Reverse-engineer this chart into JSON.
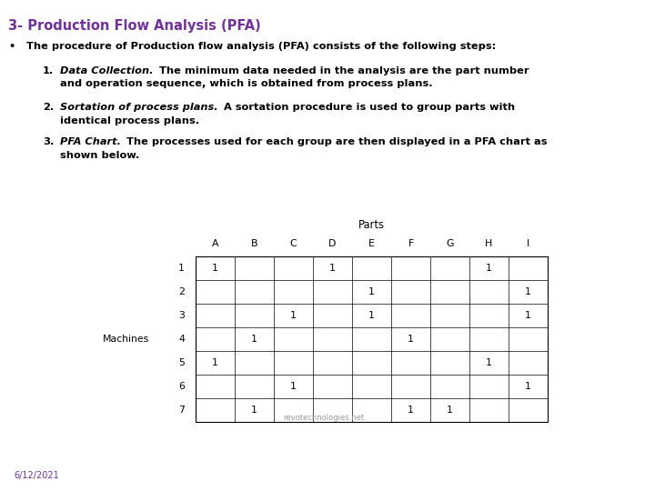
{
  "title": "3- Production Flow Analysis (PFA)",
  "title_color": "#7030A0",
  "bullet_text": "The procedure of Production flow analysis (PFA) consists of the following steps:",
  "steps": [
    {
      "num": "1.",
      "italic": "Data Collection.",
      "plain": " The minimum data needed in the analysis are the part number",
      "cont": "and operation sequence, which is obtained from process plans."
    },
    {
      "num": "2.",
      "italic": "Sortation of process plans.",
      "plain": " A sortation procedure is used to group parts with",
      "cont": "identical process plans."
    },
    {
      "num": "3.",
      "italic": "PFA Chart.",
      "plain": " The processes used for each group are then displayed in a PFA chart as",
      "cont": "shown below."
    }
  ],
  "table": {
    "parts_label": "Parts",
    "machines_label": "Machines",
    "parts": [
      "A",
      "B",
      "C",
      "D",
      "E",
      "F",
      "G",
      "H",
      "I"
    ],
    "machines": [
      "1",
      "2",
      "3",
      "4",
      "5",
      "6",
      "7"
    ],
    "data": [
      [
        1,
        0,
        0,
        1,
        0,
        0,
        0,
        1,
        0
      ],
      [
        0,
        0,
        0,
        0,
        1,
        0,
        0,
        0,
        1
      ],
      [
        0,
        0,
        1,
        0,
        1,
        0,
        0,
        0,
        1
      ],
      [
        0,
        1,
        0,
        0,
        0,
        1,
        0,
        0,
        0
      ],
      [
        1,
        0,
        0,
        0,
        0,
        0,
        0,
        1,
        0
      ],
      [
        0,
        0,
        1,
        0,
        0,
        0,
        0,
        0,
        1
      ],
      [
        0,
        1,
        0,
        0,
        0,
        1,
        1,
        0,
        0
      ]
    ]
  },
  "date_text": "6/12/2021",
  "watermark_text": "revotechnologies.net",
  "bg_color": "#ffffff",
  "text_color": "#000000",
  "date_color": "#7030A0",
  "title_fs": 10.5,
  "body_fs": 8.2,
  "table_fs": 7.8
}
